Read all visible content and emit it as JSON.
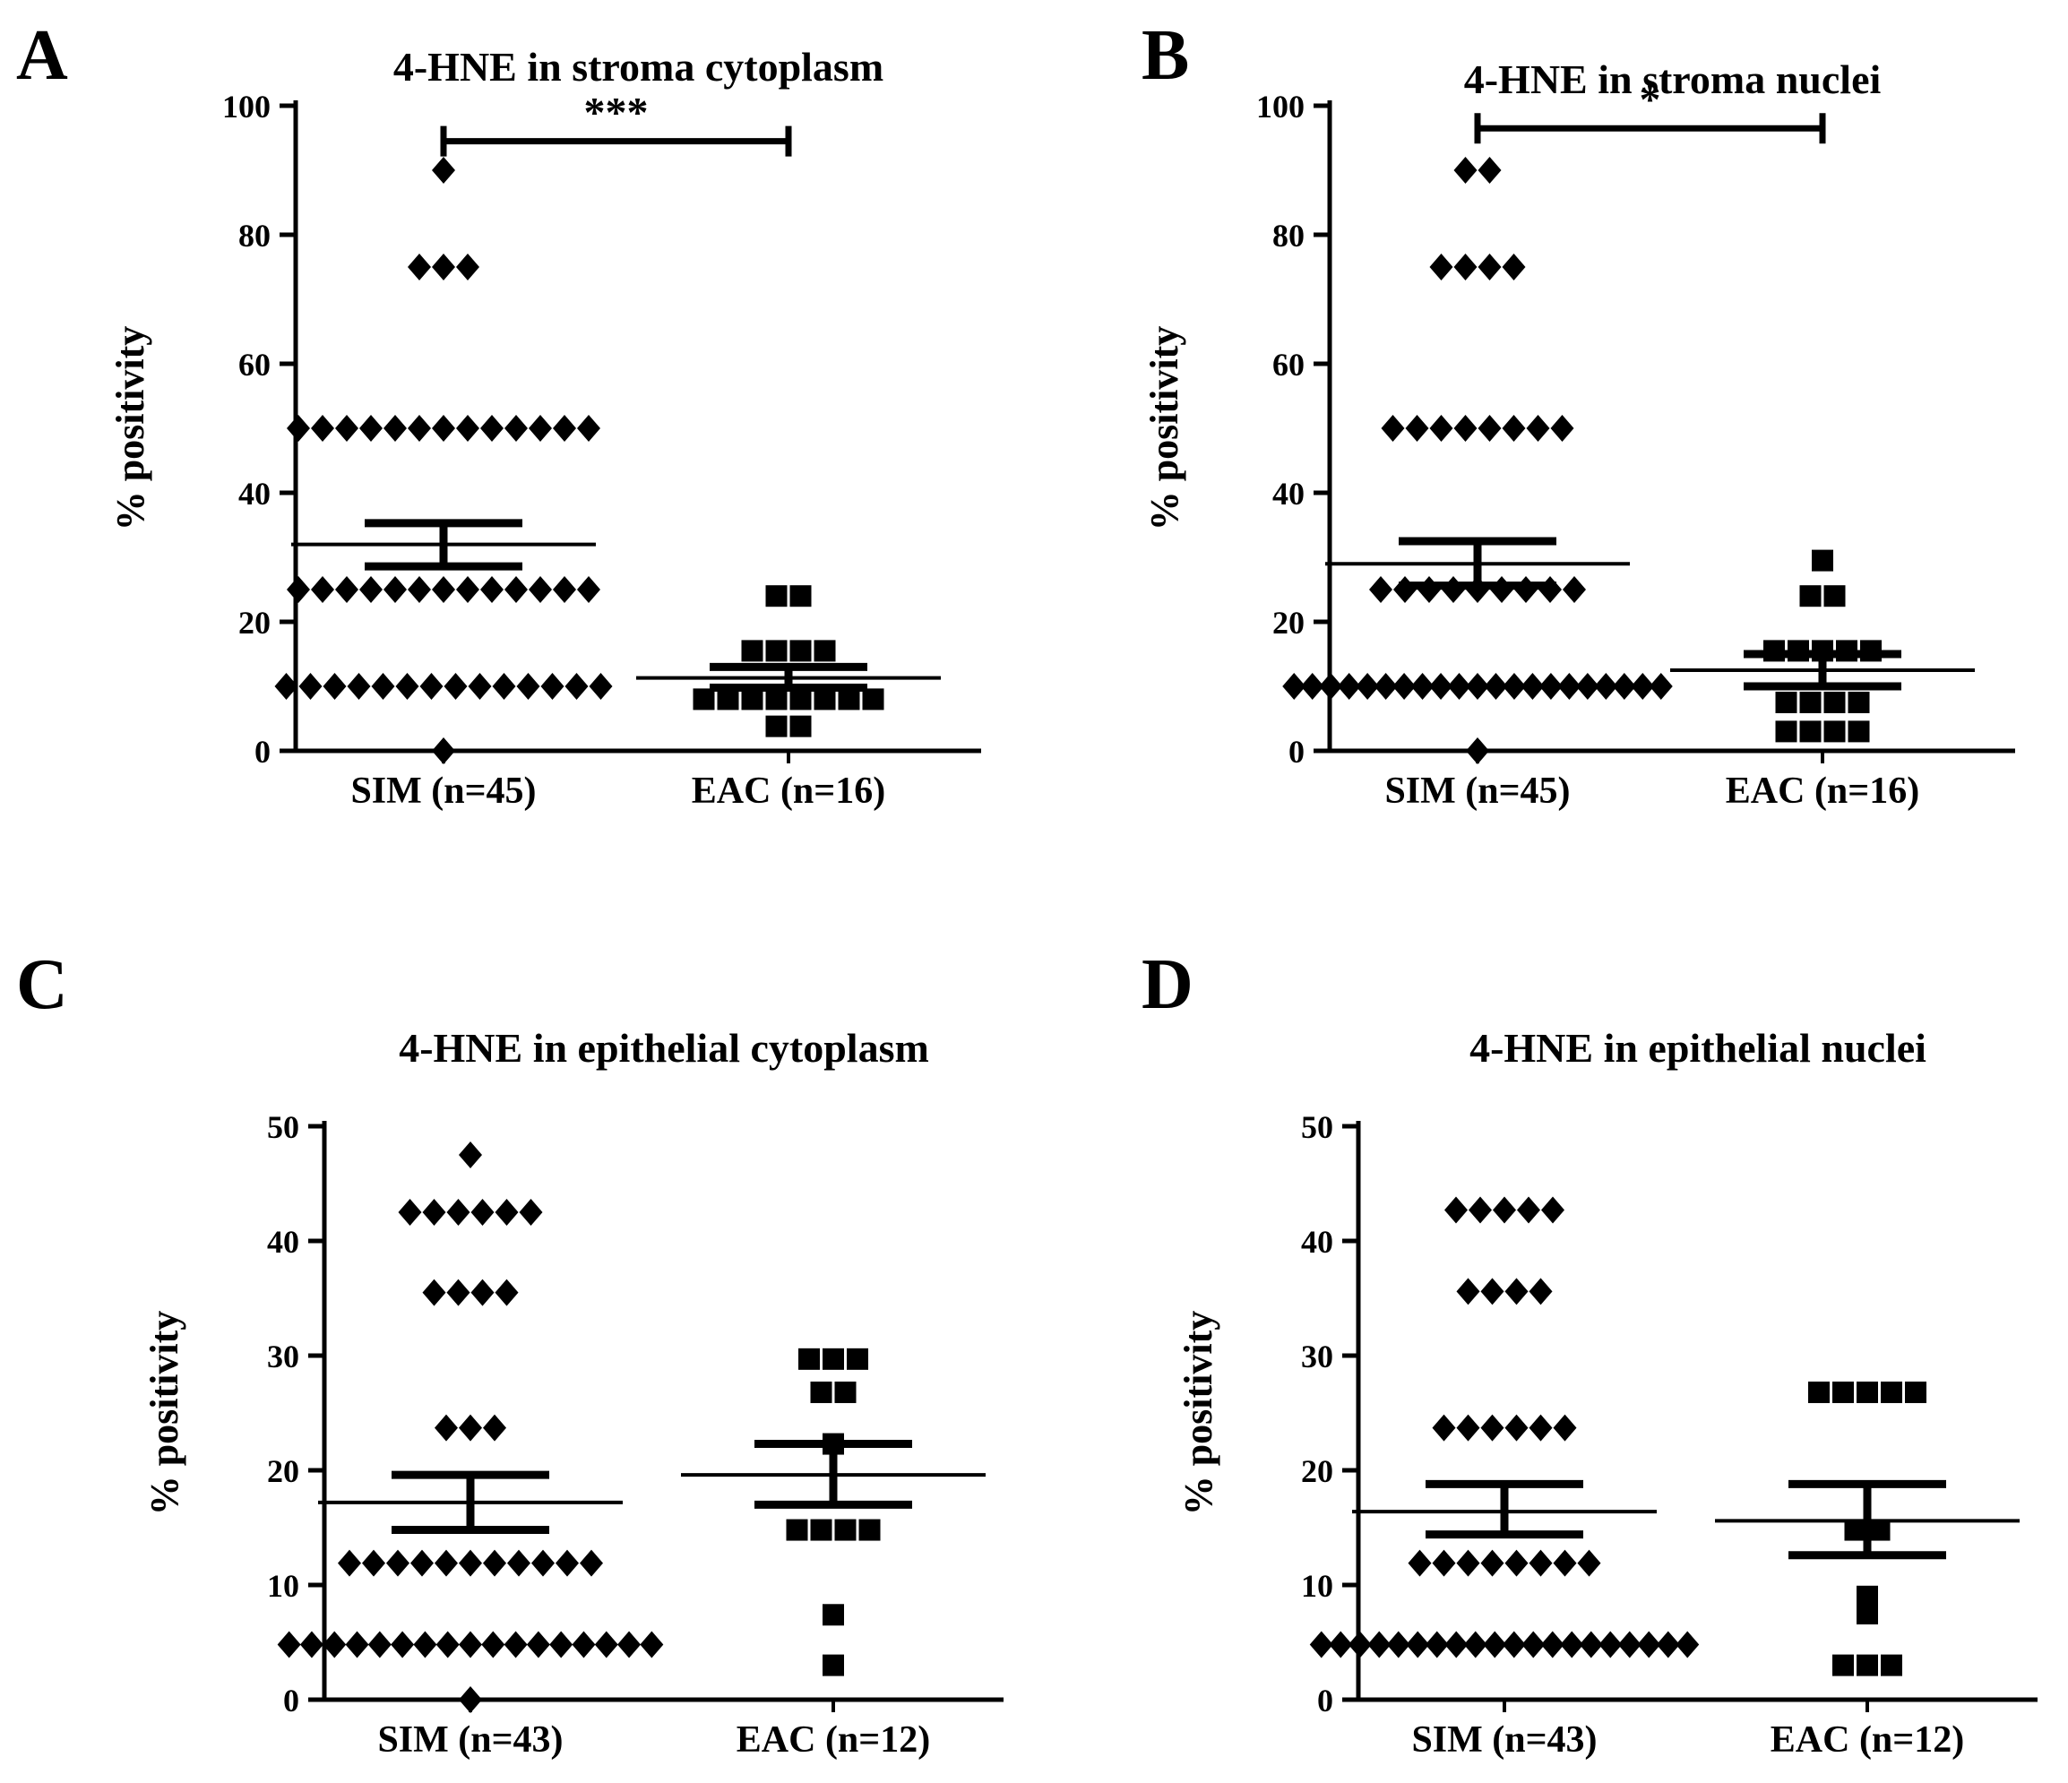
{
  "figure_label": "4-HNE immunopositivity dot plots",
  "axis_color": "#000000",
  "marker_color": "#000000",
  "background_color": "#ffffff",
  "chart_data": [
    {
      "type": "scatter",
      "panel": "A",
      "title": "4-HNE in stroma cytoplasm",
      "ylabel": "% positivity",
      "ylim": [
        0,
        100
      ],
      "yticks": [
        0,
        20,
        40,
        60,
        80,
        100
      ],
      "significance": "***",
      "sig_y": 94.5,
      "legend": "none",
      "grid": false,
      "groups": [
        {
          "label": "SIM (n=45)",
          "marker": "diamond",
          "mean": 32,
          "err_hi": 35.3,
          "err_lo": 28.6,
          "points": [
            {
              "value": 90,
              "count": 1
            },
            {
              "value": 75,
              "count": 3
            },
            {
              "value": 50,
              "count": 13
            },
            {
              "value": 25,
              "count": 13
            },
            {
              "value": 10,
              "count": 14
            },
            {
              "value": 0,
              "count": 1
            }
          ]
        },
        {
          "label": "EAC (n=16)",
          "marker": "square",
          "mean": 11.3,
          "err_hi": 13,
          "err_lo": 9.8,
          "points": [
            {
              "value": 24,
              "count": 2
            },
            {
              "value": 15.5,
              "count": 4
            },
            {
              "value": 8,
              "count": 8
            },
            {
              "value": 3.8,
              "count": 2
            }
          ]
        }
      ]
    },
    {
      "type": "scatter",
      "panel": "B",
      "title": "4-HNE in stroma nuclei",
      "ylabel": "% positivity",
      "ylim": [
        0,
        100
      ],
      "yticks": [
        0,
        20,
        40,
        60,
        80,
        100
      ],
      "significance": "*",
      "sig_y": 96.5,
      "legend": "none",
      "grid": false,
      "groups": [
        {
          "label": "SIM (n=45)",
          "marker": "diamond",
          "mean": 29,
          "err_hi": 32.5,
          "err_lo": 25.6,
          "points": [
            {
              "value": 90,
              "count": 2
            },
            {
              "value": 75,
              "count": 4
            },
            {
              "value": 50,
              "count": 8
            },
            {
              "value": 25,
              "count": 9
            },
            {
              "value": 10,
              "count": 21
            },
            {
              "value": 0,
              "count": 1
            }
          ]
        },
        {
          "label": "EAC (n=16)",
          "marker": "square",
          "mean": 12.5,
          "err_hi": 15,
          "err_lo": 10,
          "points": [
            {
              "value": 29.5,
              "count": 1
            },
            {
              "value": 24,
              "count": 2
            },
            {
              "value": 15.5,
              "count": 5
            },
            {
              "value": 7.5,
              "count": 4
            },
            {
              "value": 3,
              "count": 4
            }
          ]
        }
      ]
    },
    {
      "type": "scatter",
      "panel": "C",
      "title": "4-HNE in epithelial cytoplasm",
      "ylabel": "% positivity",
      "ylim": [
        0,
        50
      ],
      "yticks": [
        0,
        10,
        20,
        30,
        40,
        50
      ],
      "significance": null,
      "sig_y": null,
      "legend": "none",
      "grid": false,
      "groups": [
        {
          "label": "SIM (n=43)",
          "marker": "diamond",
          "mean": 17.2,
          "err_hi": 19.6,
          "err_lo": 14.8,
          "points": [
            {
              "value": 47.5,
              "count": 1
            },
            {
              "value": 42.5,
              "count": 6
            },
            {
              "value": 35.5,
              "count": 4
            },
            {
              "value": 23.7,
              "count": 3
            },
            {
              "value": 11.9,
              "count": 11
            },
            {
              "value": 4.8,
              "count": 17
            },
            {
              "value": 0,
              "count": 1
            }
          ]
        },
        {
          "label": "EAC (n=12)",
          "marker": "square",
          "mean": 19.6,
          "err_hi": 22.3,
          "err_lo": 17,
          "points": [
            {
              "value": 29.7,
              "count": 3
            },
            {
              "value": 26.8,
              "count": 2
            },
            {
              "value": 22.3,
              "count": 1
            },
            {
              "value": 14.8,
              "count": 4
            },
            {
              "value": 7.4,
              "count": 1
            },
            {
              "value": 3,
              "count": 1
            }
          ]
        }
      ]
    },
    {
      "type": "scatter",
      "panel": "D",
      "title": "4-HNE in epithelial nuclei",
      "ylabel": "% positivity",
      "ylim": [
        0,
        50
      ],
      "yticks": [
        0,
        10,
        20,
        30,
        40,
        50
      ],
      "significance": null,
      "sig_y": null,
      "legend": "none",
      "grid": false,
      "groups": [
        {
          "label": "SIM (n=43)",
          "marker": "diamond",
          "mean": 16.4,
          "err_hi": 18.8,
          "err_lo": 14.4,
          "points": [
            {
              "value": 42.7,
              "count": 5
            },
            {
              "value": 35.6,
              "count": 4
            },
            {
              "value": 23.7,
              "count": 6
            },
            {
              "value": 11.9,
              "count": 8
            },
            {
              "value": 4.8,
              "count": 20
            }
          ]
        },
        {
          "label": "EAC (n=12)",
          "marker": "square",
          "mean": 15.6,
          "err_hi": 18.8,
          "err_lo": 12.6,
          "points": [
            {
              "value": 26.8,
              "count": 5
            },
            {
              "value": 14.8,
              "count": 2
            },
            {
              "value": 9,
              "count": 1
            },
            {
              "value": 7.5,
              "count": 1
            },
            {
              "value": 3,
              "count": 3
            }
          ]
        }
      ]
    }
  ]
}
